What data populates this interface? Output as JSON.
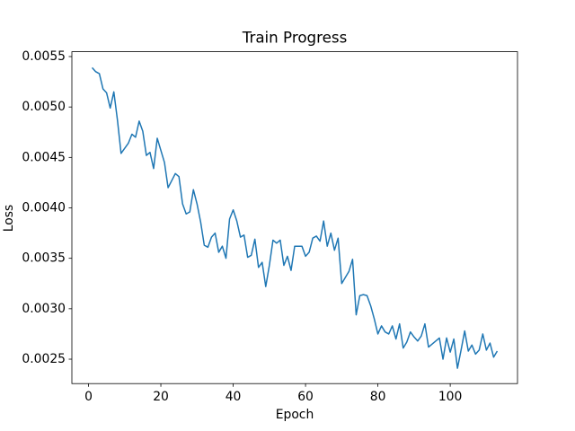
{
  "chart_data": {
    "type": "line",
    "title": "Train Progress",
    "x_label": "Epoch",
    "y_label": "Loss",
    "x": [
      1,
      2,
      3,
      4,
      5,
      6,
      7,
      8,
      9,
      10,
      11,
      12,
      13,
      14,
      15,
      16,
      17,
      18,
      19,
      20,
      21,
      22,
      23,
      24,
      25,
      26,
      27,
      28,
      29,
      30,
      31,
      32,
      33,
      34,
      35,
      36,
      37,
      38,
      39,
      40,
      41,
      42,
      43,
      44,
      45,
      46,
      47,
      48,
      49,
      50,
      51,
      52,
      53,
      54,
      55,
      56,
      57,
      58,
      59,
      60,
      61,
      62,
      63,
      64,
      65,
      66,
      67,
      68,
      69,
      70,
      71,
      72,
      73,
      74,
      75,
      76,
      77,
      78,
      79,
      80,
      81,
      82,
      83,
      84,
      85,
      86,
      87,
      88,
      89,
      90,
      91,
      92,
      93,
      94,
      95,
      96,
      97,
      98,
      99,
      100,
      101,
      102,
      103,
      104,
      105,
      106,
      107,
      108,
      109,
      110,
      111,
      112,
      113
    ],
    "series": [
      {
        "color": "#1f77b4",
        "values": [
          0.00539,
          0.00535,
          0.00533,
          0.00518,
          0.00514,
          0.00499,
          0.00515,
          0.00487,
          0.00454,
          0.00459,
          0.00464,
          0.00473,
          0.0047,
          0.00486,
          0.00476,
          0.00452,
          0.00455,
          0.00439,
          0.00469,
          0.00457,
          0.00445,
          0.0042,
          0.00427,
          0.00434,
          0.00431,
          0.00404,
          0.00394,
          0.00396,
          0.00418,
          0.00404,
          0.00386,
          0.00363,
          0.00361,
          0.00371,
          0.00375,
          0.00356,
          0.00362,
          0.0035,
          0.00389,
          0.00398,
          0.00387,
          0.00371,
          0.00373,
          0.00351,
          0.00353,
          0.00369,
          0.00341,
          0.00346,
          0.00322,
          0.00343,
          0.00368,
          0.00365,
          0.00368,
          0.00343,
          0.00352,
          0.00338,
          0.00362,
          0.00362,
          0.00362,
          0.00352,
          0.00356,
          0.0037,
          0.00372,
          0.00367,
          0.00387,
          0.00362,
          0.00375,
          0.00358,
          0.0037,
          0.00325,
          0.00331,
          0.00337,
          0.00349,
          0.00294,
          0.00313,
          0.00314,
          0.00313,
          0.00303,
          0.0029,
          0.00275,
          0.00283,
          0.00277,
          0.00275,
          0.00283,
          0.0027,
          0.00285,
          0.00261,
          0.00267,
          0.00277,
          0.00272,
          0.00268,
          0.00273,
          0.00285,
          0.00262,
          0.00265,
          0.00268,
          0.00271,
          0.0025,
          0.00271,
          0.00257,
          0.0027,
          0.00241,
          0.00259,
          0.00278,
          0.00258,
          0.00264,
          0.00255,
          0.00259,
          0.00275,
          0.00259,
          0.00266,
          0.00252,
          0.00258
        ]
      }
    ],
    "xlim": [
      -4.6,
      118.6
    ],
    "xticks": [
      0,
      20,
      40,
      60,
      80,
      100
    ],
    "ylim": [
      0.002258,
      0.005548
    ],
    "yticks": [
      0.0025,
      {
        "value": 0.003,
        "label": "0.0030"
      },
      0.0035,
      {
        "value": 0.004,
        "label": "0.0040"
      },
      0.0045,
      {
        "value": 0.005,
        "label": "0.0050"
      },
      0.0055
    ]
  }
}
